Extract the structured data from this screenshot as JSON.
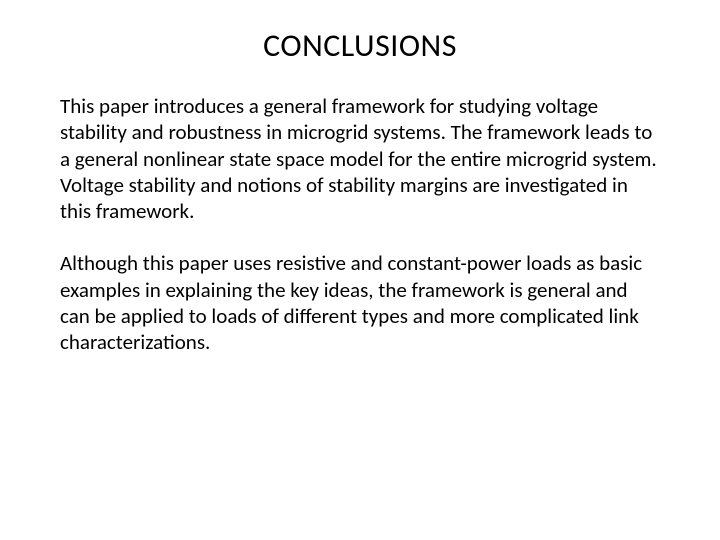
{
  "slide": {
    "title": "CONCLUSIONS",
    "paragraphs": [
      "This paper introduces a general framework for studying voltage stability and robustness in microgrid systems. The framework leads to a general nonlinear state space model for the entire microgrid system. Voltage stability and notions of stability margins are investigated in this framework.",
      "Although this paper uses resistive and constant-power loads as basic examples in explaining the key ideas, the framework is general and can be applied to loads of different types and more complicated link characterizations."
    ],
    "styling": {
      "background_color": "#ffffff",
      "text_color": "#000000",
      "title_fontsize": 32,
      "title_fontweight": 400,
      "body_fontsize": 21,
      "font_family": "Calibri",
      "title_align": "center",
      "body_align": "left",
      "line_height": 1.25
    }
  }
}
